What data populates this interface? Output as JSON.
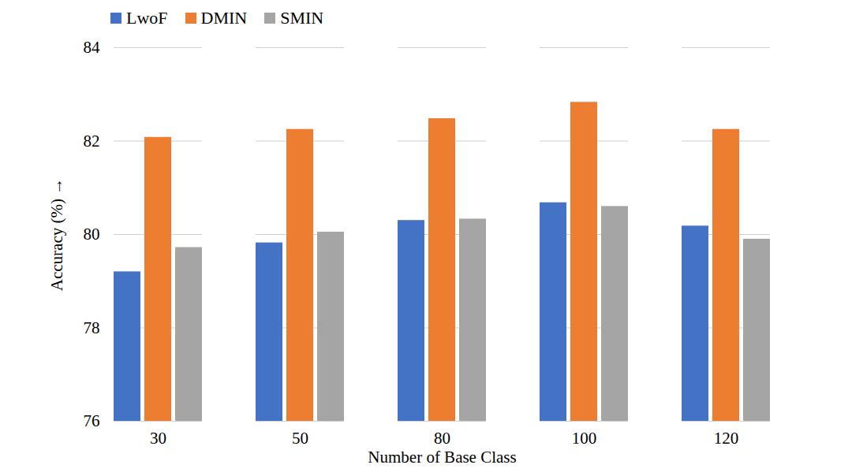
{
  "chart_data": {
    "type": "bar",
    "categories": [
      30,
      50,
      80,
      100,
      120
    ],
    "series": [
      {
        "name": "LwoF",
        "color": "#4472c4",
        "values": [
          79.2,
          79.82,
          80.3,
          80.68,
          80.18
        ]
      },
      {
        "name": "DMIN",
        "color": "#ed7d31",
        "values": [
          82.08,
          82.25,
          82.48,
          82.83,
          82.25
        ]
      },
      {
        "name": "SMIN",
        "color": "#a5a5a5",
        "values": [
          79.72,
          80.05,
          80.33,
          80.6,
          79.9
        ]
      }
    ],
    "x_label": "Number of Base Class",
    "y_label": "Accuracy (%)",
    "ylim": [
      76,
      84
    ],
    "yticks": [
      76,
      78,
      80,
      82,
      84
    ],
    "grid": true,
    "legend": "top-left"
  }
}
